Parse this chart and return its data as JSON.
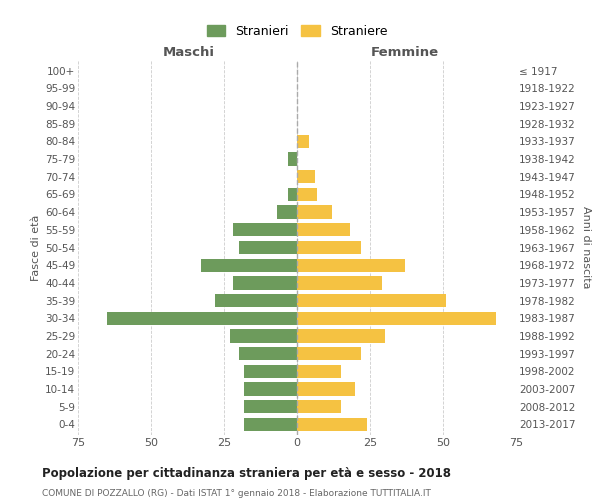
{
  "age_groups": [
    "0-4",
    "5-9",
    "10-14",
    "15-19",
    "20-24",
    "25-29",
    "30-34",
    "35-39",
    "40-44",
    "45-49",
    "50-54",
    "55-59",
    "60-64",
    "65-69",
    "70-74",
    "75-79",
    "80-84",
    "85-89",
    "90-94",
    "95-99",
    "100+"
  ],
  "birth_years": [
    "2013-2017",
    "2008-2012",
    "2003-2007",
    "1998-2002",
    "1993-1997",
    "1988-1992",
    "1983-1987",
    "1978-1982",
    "1973-1977",
    "1968-1972",
    "1963-1967",
    "1958-1962",
    "1953-1957",
    "1948-1952",
    "1943-1947",
    "1938-1942",
    "1933-1937",
    "1928-1932",
    "1923-1927",
    "1918-1922",
    "≤ 1917"
  ],
  "maschi": [
    18,
    18,
    18,
    18,
    20,
    23,
    65,
    28,
    22,
    33,
    20,
    22,
    7,
    3,
    0,
    3,
    0,
    0,
    0,
    0,
    0
  ],
  "femmine": [
    24,
    15,
    20,
    15,
    22,
    30,
    68,
    51,
    29,
    37,
    22,
    18,
    12,
    7,
    6,
    0,
    4,
    0,
    0,
    0,
    0
  ],
  "color_maschi": "#6d9b5c",
  "color_femmine": "#f5c242",
  "title": "Popolazione per cittadinanza straniera per età e sesso - 2018",
  "subtitle": "COMUNE DI POZZALLO (RG) - Dati ISTAT 1° gennaio 2018 - Elaborazione TUTTITALIA.IT",
  "xlabel_left": "Maschi",
  "xlabel_right": "Femmine",
  "ylabel_left": "Fasce di età",
  "ylabel_right": "Anni di nascita",
  "xlim": 75,
  "legend_stranieri": "Stranieri",
  "legend_straniere": "Straniere",
  "bg_color": "#ffffff",
  "grid_color": "#cccccc"
}
